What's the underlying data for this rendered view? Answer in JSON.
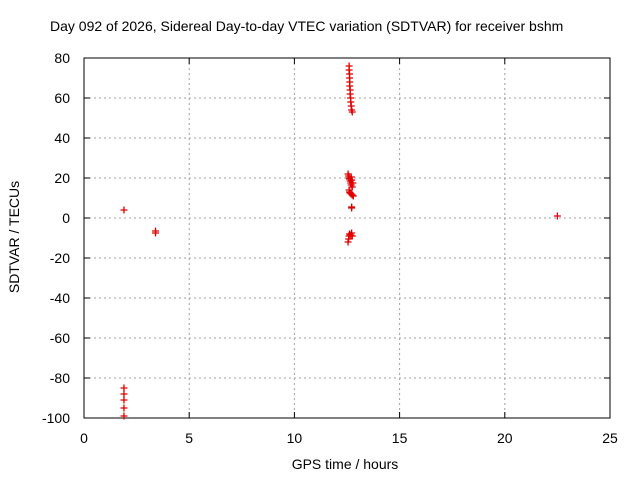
{
  "chart_data": {
    "type": "scatter",
    "title": "Day 092 of 2026, Sidereal Day-to-day VTEC variation (SDTVAR) for receiver bshm",
    "xlabel": "GPS time / hours",
    "ylabel": "SDTVAR / TECUs",
    "xlim": [
      0,
      25
    ],
    "ylim": [
      -100,
      80
    ],
    "xticks": [
      0,
      5,
      10,
      15,
      20,
      25
    ],
    "yticks": [
      -100,
      -80,
      -60,
      -40,
      -20,
      0,
      20,
      40,
      60,
      80
    ],
    "grid": true,
    "marker": "+",
    "marker_color": "#e00000",
    "series": [
      {
        "name": "SDTVAR",
        "points": [
          [
            1.9,
            4
          ],
          [
            1.9,
            -85
          ],
          [
            1.9,
            -88
          ],
          [
            1.9,
            -91
          ],
          [
            1.9,
            -95
          ],
          [
            1.9,
            -99
          ],
          [
            3.4,
            -6.5
          ],
          [
            3.4,
            -7.5
          ],
          [
            12.6,
            76
          ],
          [
            12.6,
            74
          ],
          [
            12.62,
            72
          ],
          [
            12.62,
            70
          ],
          [
            12.63,
            68
          ],
          [
            12.63,
            66
          ],
          [
            12.65,
            64
          ],
          [
            12.65,
            62
          ],
          [
            12.67,
            60
          ],
          [
            12.68,
            58
          ],
          [
            12.7,
            56
          ],
          [
            12.72,
            54
          ],
          [
            12.75,
            53
          ],
          [
            12.55,
            22
          ],
          [
            12.58,
            21
          ],
          [
            12.6,
            20
          ],
          [
            12.62,
            19.5
          ],
          [
            12.65,
            18.5
          ],
          [
            12.68,
            17.5
          ],
          [
            12.7,
            16.5
          ],
          [
            12.75,
            15.5
          ],
          [
            12.7,
            20.5
          ],
          [
            12.72,
            19
          ],
          [
            12.78,
            17.5
          ],
          [
            12.6,
            14
          ],
          [
            12.62,
            13
          ],
          [
            12.65,
            12.5
          ],
          [
            12.7,
            12
          ],
          [
            12.75,
            11.5
          ],
          [
            12.8,
            11
          ],
          [
            12.72,
            5.5
          ],
          [
            12.72,
            5
          ],
          [
            12.55,
            -12
          ],
          [
            12.58,
            -10.5
          ],
          [
            12.6,
            -9
          ],
          [
            12.62,
            -8
          ],
          [
            12.68,
            -8.5
          ],
          [
            12.72,
            -7.5
          ],
          [
            12.75,
            -9
          ],
          [
            22.5,
            1
          ]
        ]
      }
    ]
  }
}
